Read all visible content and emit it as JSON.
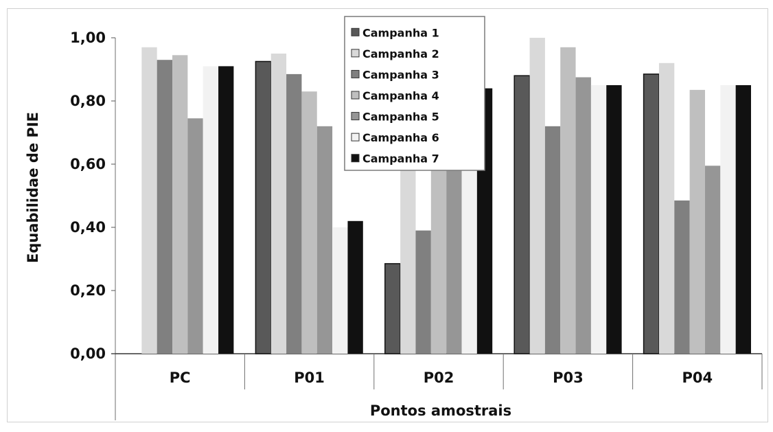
{
  "chart_data": {
    "type": "bar",
    "title": "",
    "xlabel": "Pontos amostrais",
    "ylabel": "Equabilidae de PIE",
    "ylim": [
      0,
      1.0
    ],
    "yticks": [
      "0,00",
      "0,20",
      "0,40",
      "0,60",
      "0,80",
      "1,00"
    ],
    "ytick_values": [
      0,
      0.2,
      0.4,
      0.6,
      0.8,
      1.0
    ],
    "grid": false,
    "legend_position": "top-center",
    "categories": [
      "PC",
      "P01",
      "P02",
      "P03",
      "P04"
    ],
    "series": [
      {
        "name": "Campanha 1",
        "color": "#595959",
        "values": [
          null,
          0.925,
          0.285,
          0.88,
          0.885
        ]
      },
      {
        "name": "Campanha 2",
        "color": "#d9d9d9",
        "values": [
          0.97,
          0.95,
          0.645,
          1.0,
          0.92
        ]
      },
      {
        "name": "Campanha 3",
        "color": "#808080",
        "values": [
          0.93,
          0.885,
          0.39,
          0.72,
          0.485
        ]
      },
      {
        "name": "Campanha 4",
        "color": "#bfbfbf",
        "values": [
          0.945,
          0.83,
          0.6,
          0.97,
          0.835
        ]
      },
      {
        "name": "Campanha 5",
        "color": "#969696",
        "values": [
          0.745,
          0.72,
          0.655,
          0.875,
          0.595
        ]
      },
      {
        "name": "Campanha 6",
        "color": "#f2f2f2",
        "values": [
          0.91,
          0.4,
          0.6,
          0.85,
          0.85
        ]
      },
      {
        "name": "Campanha 7",
        "color": "#111111",
        "values": [
          0.91,
          0.42,
          0.84,
          0.85,
          0.85
        ]
      }
    ]
  }
}
